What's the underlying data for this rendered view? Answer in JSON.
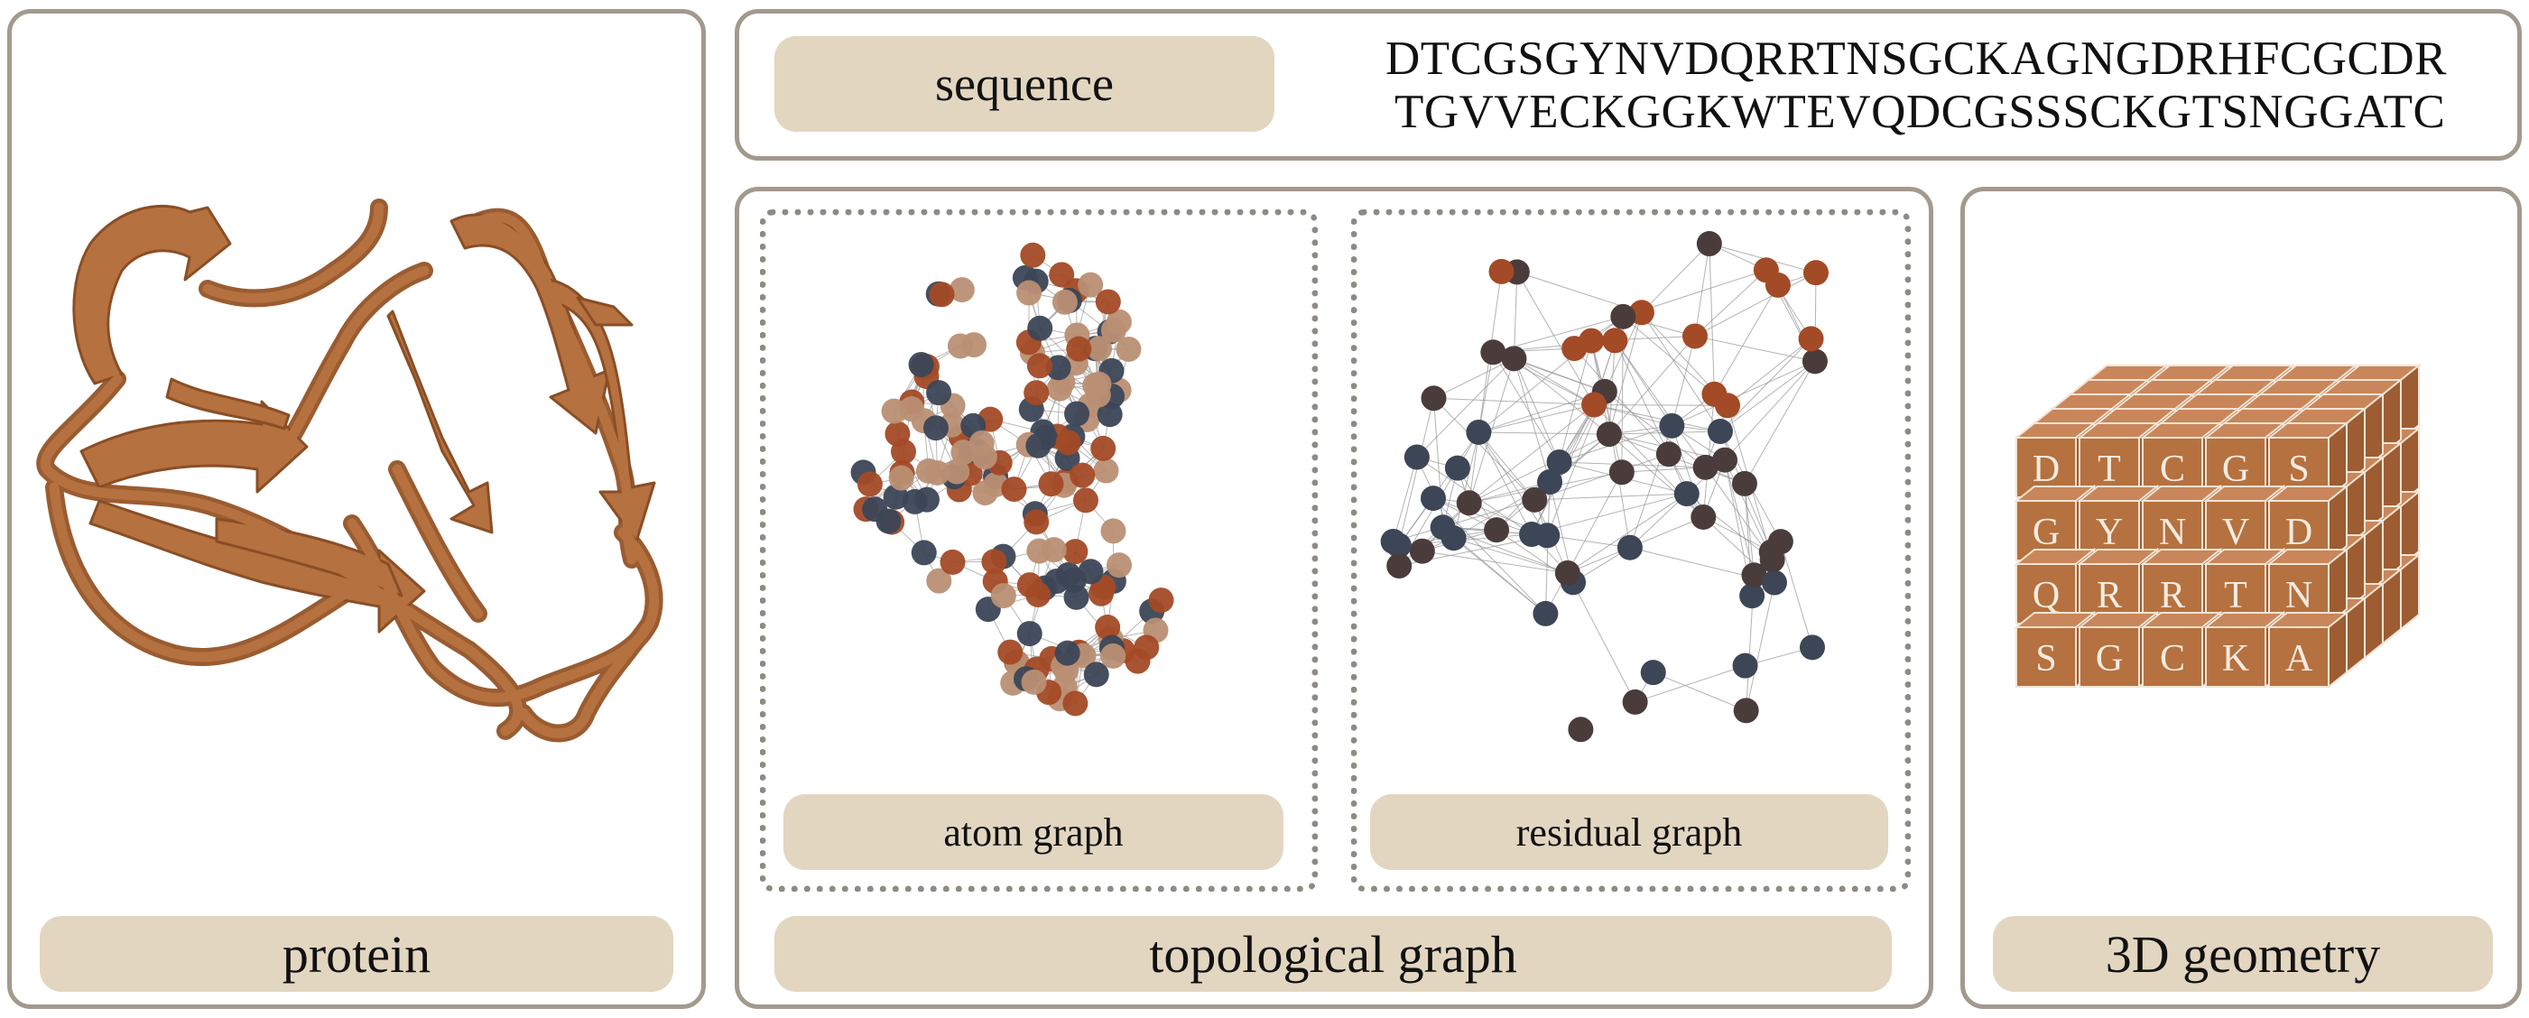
{
  "sequence_panel": {
    "label": "sequence",
    "line1": "DTCGSGYNVDQRRTNSGCKAGNGDRHFCGCDR",
    "line2": "TGVVECKGGKWTEVQDCGSSSCKGTSNGGATC"
  },
  "protein_panel": {
    "label": "protein"
  },
  "topological_panel": {
    "label": "topological graph",
    "atom_graph": {
      "label": "atom graph"
    },
    "residual_graph": {
      "label": "residual graph"
    }
  },
  "geometry_panel": {
    "label": "3D geometry",
    "cube_letters": [
      [
        "D",
        "T",
        "C",
        "G",
        "S"
      ],
      [
        "G",
        "Y",
        "N",
        "V",
        "D"
      ],
      [
        "Q",
        "R",
        "R",
        "T",
        "N"
      ],
      [
        "S",
        "G",
        "C",
        "K",
        "A"
      ]
    ]
  },
  "colors": {
    "panel_border": "#a39a8d",
    "pill_fill": "#e2d6c1",
    "protein_ribbon": "#b5713f",
    "node_slate": "#3c4656",
    "node_rust": "#a34a26",
    "node_tan": "#b98f74",
    "node_dark": "#4b3c3c"
  }
}
